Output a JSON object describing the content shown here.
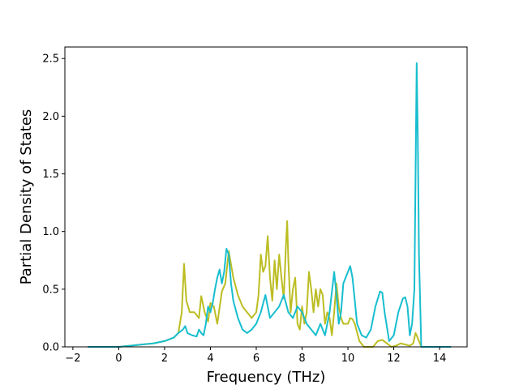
{
  "chart_data": {
    "type": "line",
    "title": "",
    "xlabel": "Frequency (THz)",
    "ylabel": "Partial Density of States",
    "xlim": [
      -2.35,
      15.2
    ],
    "ylim": [
      0.0,
      2.6
    ],
    "xticks": [
      -2,
      0,
      2,
      4,
      6,
      8,
      10,
      12,
      14
    ],
    "xtick_labels": [
      "−2",
      "0",
      "2",
      "4",
      "6",
      "8",
      "10",
      "12",
      "14"
    ],
    "yticks": [
      0.0,
      0.5,
      1.0,
      1.5,
      2.0,
      2.5
    ],
    "ytick_labels": [
      "0.0",
      "0.5",
      "1.0",
      "1.5",
      "2.0",
      "2.5"
    ],
    "grid": false,
    "legend": "none",
    "series": [
      {
        "color": "#bcbd22",
        "x": [
          -1.35,
          0.0,
          0.5,
          1.0,
          1.5,
          2.0,
          2.4,
          2.6,
          2.75,
          2.85,
          2.95,
          3.1,
          3.3,
          3.5,
          3.6,
          3.75,
          3.9,
          4.0,
          4.15,
          4.3,
          4.5,
          4.65,
          4.8,
          5.0,
          5.2,
          5.4,
          5.6,
          5.8,
          6.0,
          6.1,
          6.2,
          6.3,
          6.4,
          6.5,
          6.6,
          6.7,
          6.8,
          6.9,
          7.0,
          7.1,
          7.2,
          7.3,
          7.35,
          7.4,
          7.5,
          7.6,
          7.7,
          7.8,
          7.9,
          8.0,
          8.1,
          8.2,
          8.3,
          8.4,
          8.5,
          8.6,
          8.7,
          8.8,
          8.9,
          9.0,
          9.1,
          9.2,
          9.3,
          9.4,
          9.5,
          9.6,
          9.7,
          9.8,
          9.9,
          10.0,
          10.1,
          10.2,
          10.3,
          10.5,
          10.7,
          10.9,
          11.1,
          11.3,
          11.5,
          11.7,
          11.9,
          12.1,
          12.3,
          12.5,
          12.7,
          12.85,
          12.95,
          13.0,
          13.1,
          13.2,
          14.5
        ],
        "y": [
          0.0,
          0.0,
          0.01,
          0.02,
          0.03,
          0.05,
          0.08,
          0.12,
          0.3,
          0.72,
          0.4,
          0.3,
          0.3,
          0.25,
          0.44,
          0.3,
          0.22,
          0.38,
          0.35,
          0.2,
          0.48,
          0.55,
          0.83,
          0.6,
          0.45,
          0.35,
          0.3,
          0.25,
          0.3,
          0.45,
          0.8,
          0.65,
          0.7,
          0.96,
          0.6,
          0.4,
          0.75,
          0.5,
          0.8,
          0.6,
          0.42,
          0.9,
          1.09,
          0.75,
          0.3,
          0.5,
          0.6,
          0.2,
          0.15,
          0.35,
          0.2,
          0.3,
          0.65,
          0.5,
          0.3,
          0.5,
          0.35,
          0.5,
          0.45,
          0.2,
          0.3,
          0.25,
          0.1,
          0.3,
          0.55,
          0.35,
          0.25,
          0.2,
          0.2,
          0.2,
          0.25,
          0.24,
          0.2,
          0.05,
          0.0,
          0.0,
          0.0,
          0.05,
          0.06,
          0.03,
          0.0,
          0.01,
          0.03,
          0.02,
          0.01,
          0.03,
          0.12,
          0.1,
          0.05,
          0.0,
          0.0
        ]
      },
      {
        "color": "#17becf",
        "x": [
          -1.35,
          0.0,
          0.5,
          1.0,
          1.5,
          2.0,
          2.4,
          2.6,
          2.8,
          2.9,
          3.0,
          3.2,
          3.4,
          3.5,
          3.6,
          3.7,
          3.8,
          3.9,
          4.0,
          4.1,
          4.2,
          4.3,
          4.4,
          4.5,
          4.6,
          4.7,
          4.8,
          4.9,
          5.0,
          5.2,
          5.4,
          5.6,
          5.8,
          6.0,
          6.2,
          6.4,
          6.6,
          6.8,
          7.0,
          7.2,
          7.4,
          7.6,
          7.8,
          8.0,
          8.2,
          8.4,
          8.6,
          8.8,
          9.0,
          9.2,
          9.4,
          9.5,
          9.6,
          9.7,
          9.8,
          9.9,
          10.0,
          10.1,
          10.2,
          10.3,
          10.4,
          10.6,
          10.8,
          11.0,
          11.2,
          11.4,
          11.5,
          11.6,
          11.8,
          12.0,
          12.2,
          12.4,
          12.5,
          12.6,
          12.7,
          12.8,
          12.9,
          13.0,
          13.05,
          13.1,
          13.2,
          13.3,
          14.5
        ],
        "y": [
          0.0,
          0.0,
          0.01,
          0.02,
          0.03,
          0.05,
          0.08,
          0.12,
          0.15,
          0.18,
          0.12,
          0.1,
          0.09,
          0.15,
          0.12,
          0.1,
          0.2,
          0.35,
          0.3,
          0.38,
          0.5,
          0.6,
          0.67,
          0.55,
          0.65,
          0.85,
          0.8,
          0.55,
          0.4,
          0.25,
          0.15,
          0.12,
          0.15,
          0.2,
          0.3,
          0.45,
          0.25,
          0.3,
          0.35,
          0.45,
          0.3,
          0.25,
          0.35,
          0.3,
          0.2,
          0.15,
          0.1,
          0.2,
          0.1,
          0.3,
          0.65,
          0.45,
          0.2,
          0.3,
          0.55,
          0.6,
          0.65,
          0.7,
          0.6,
          0.4,
          0.2,
          0.1,
          0.08,
          0.15,
          0.35,
          0.48,
          0.47,
          0.3,
          0.05,
          0.1,
          0.3,
          0.42,
          0.43,
          0.35,
          0.1,
          0.2,
          0.5,
          2.46,
          1.8,
          0.8,
          0.0,
          0.0,
          0.0
        ]
      }
    ]
  }
}
